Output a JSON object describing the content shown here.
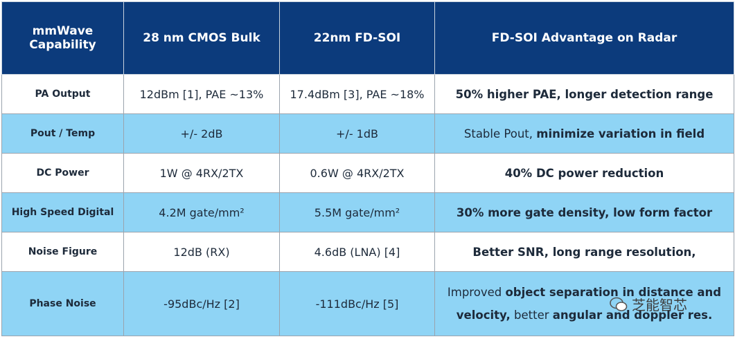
{
  "table": {
    "header": [
      "mmWave Capability",
      "28 nm CMOS Bulk",
      "22nm FD-SOI",
      "FD-SOI Advantage on Radar"
    ],
    "rows": [
      [
        "PA Output",
        "12dBm [1], PAE ~13%",
        "17.4dBm [3], PAE ~18%",
        [
          {
            "text": "50% higher PAE, longer detection range",
            "bold": true
          }
        ]
      ],
      [
        "Pout / Temp",
        "+/- 2dB",
        "+/- 1dB",
        [
          {
            "text": "Stable Pout, ",
            "bold": false
          },
          {
            "text": "minimize variation in field",
            "bold": true
          }
        ]
      ],
      [
        "DC Power",
        "1W @  4RX/2TX",
        "0.6W @ 4RX/2TX",
        [
          {
            "text": "40% DC power reduction",
            "bold": true
          }
        ]
      ],
      [
        "High Speed Digital",
        "4.2M gate/mm²",
        "5.5M gate/mm²",
        [
          {
            "text": "30% more gate density,  low form factor",
            "bold": true
          }
        ]
      ],
      [
        "Noise Figure",
        "12dB  (RX)",
        "4.6dB (LNA) [4]",
        [
          {
            "text": "Better SNR, long range resolution,",
            "bold": true
          }
        ]
      ],
      [
        "Phase Noise",
        "-95dBc/Hz [2]",
        "-111dBc/Hz [5]",
        [
          {
            "text": "Improved ",
            "bold": false
          },
          {
            "text": "object separation in distance and velocity,",
            "bold": true
          },
          {
            "text": " better ",
            "bold": false
          },
          {
            "text": "angular and doppler res.",
            "bold": true
          }
        ]
      ]
    ]
  },
  "watermark": {
    "text": "芝能智芯"
  }
}
